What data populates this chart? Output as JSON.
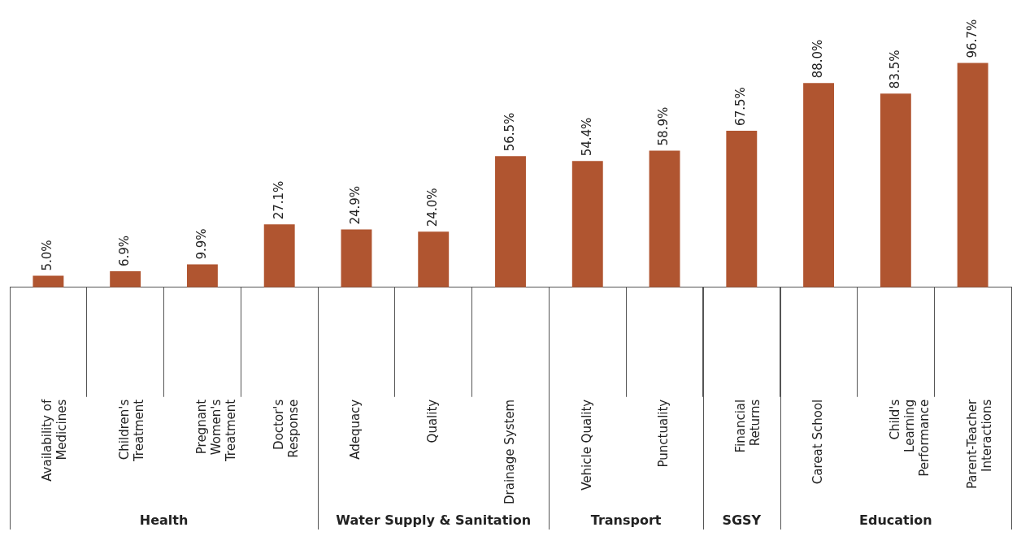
{
  "chart_data": {
    "type": "bar",
    "categories": [
      "Availability of Medicines",
      "Children's Treatment",
      "Pregnant Women's Treatment",
      "Doctor's Response",
      "Adequacy",
      "Quality",
      "Drainage System",
      "Vehicle Quality",
      "Punctuality",
      "Financial Returns",
      "Careat School",
      "Child's Learning Performance",
      "Parent-Teacher Interactions"
    ],
    "values": [
      5.0,
      6.9,
      9.9,
      27.1,
      24.9,
      24.0,
      56.5,
      54.4,
      58.9,
      67.5,
      88.0,
      83.5,
      96.7
    ],
    "value_labels": [
      "5.0%",
      "6.9%",
      "9.9%",
      "27.1%",
      "24.9%",
      "24.0%",
      "56.5%",
      "54.4%",
      "58.9%",
      "67.5%",
      "88.0%",
      "83.5%",
      "96.7%"
    ],
    "color": "#b05530",
    "annotations": [
      "Health",
      "Water Supply & Sanitation",
      "Transport",
      "SGSY",
      "Education"
    ],
    "grid": false,
    "legend": false
  }
}
